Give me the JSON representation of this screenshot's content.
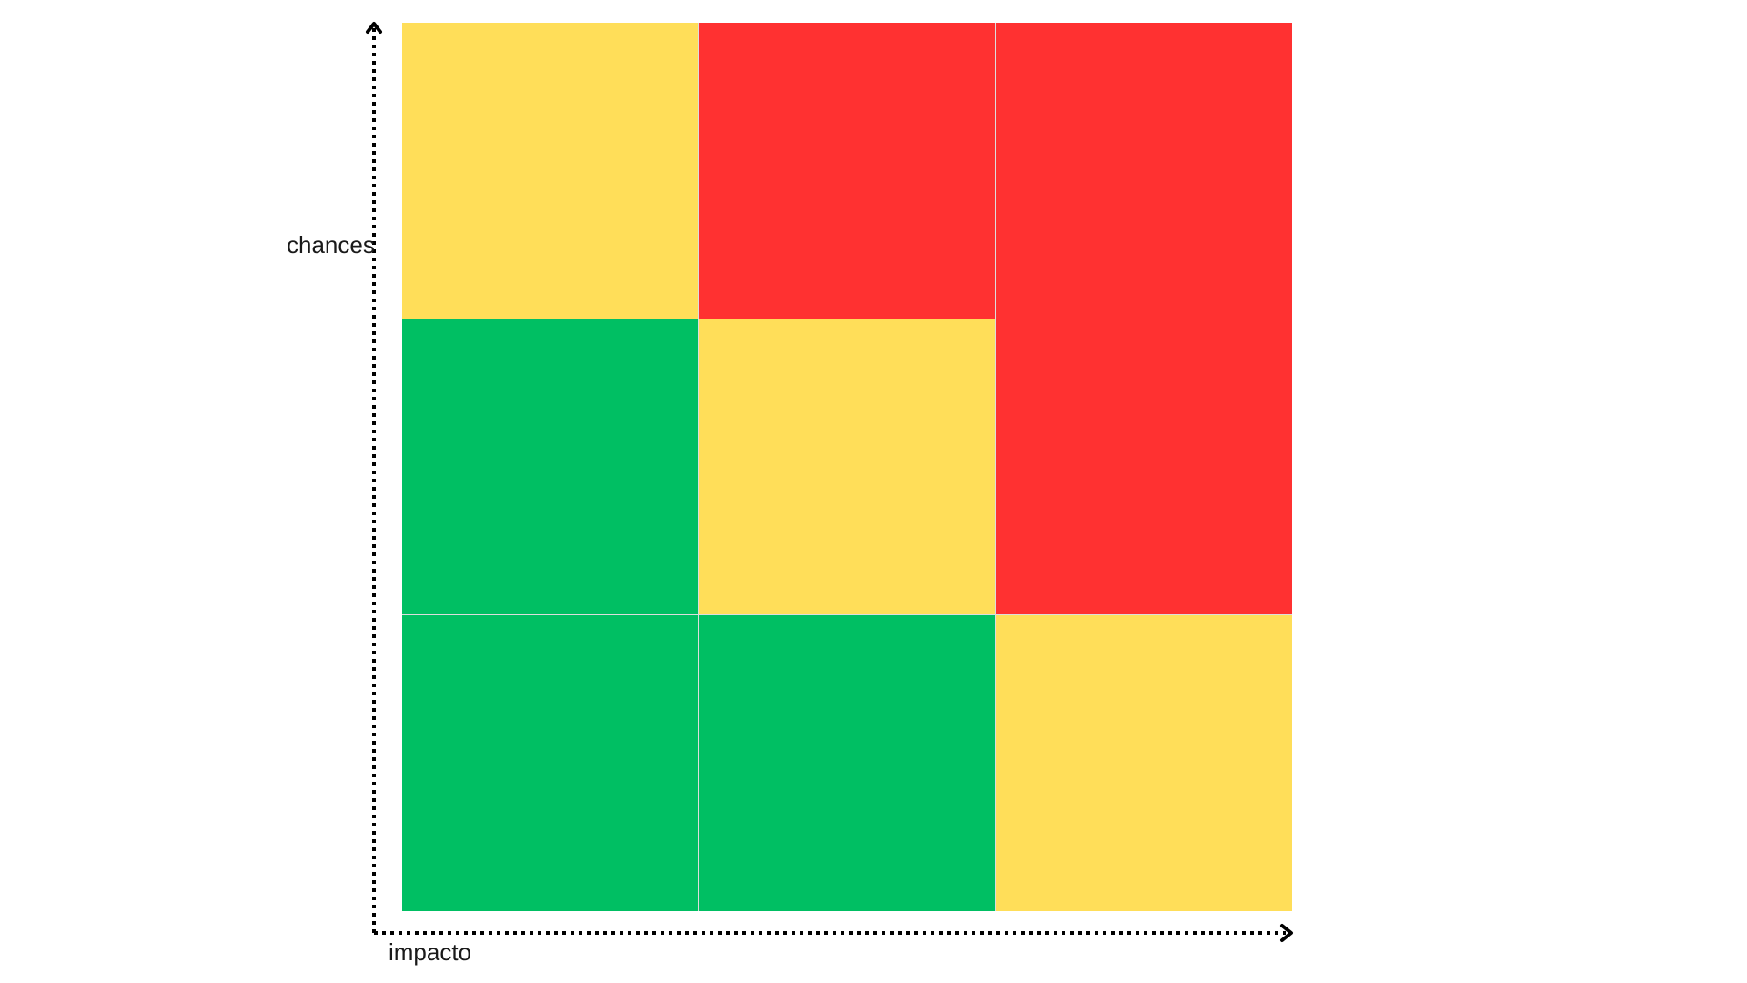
{
  "axes": {
    "x_label": "impacto",
    "y_label": "chances"
  },
  "colors": {
    "low": "#00BF63",
    "medium": "#FFDE59",
    "high": "#FF3131",
    "axis": "#000000"
  },
  "matrix": {
    "rows": [
      [
        "medium",
        "high",
        "high"
      ],
      [
        "low",
        "medium",
        "high"
      ],
      [
        "low",
        "low",
        "medium"
      ]
    ]
  }
}
